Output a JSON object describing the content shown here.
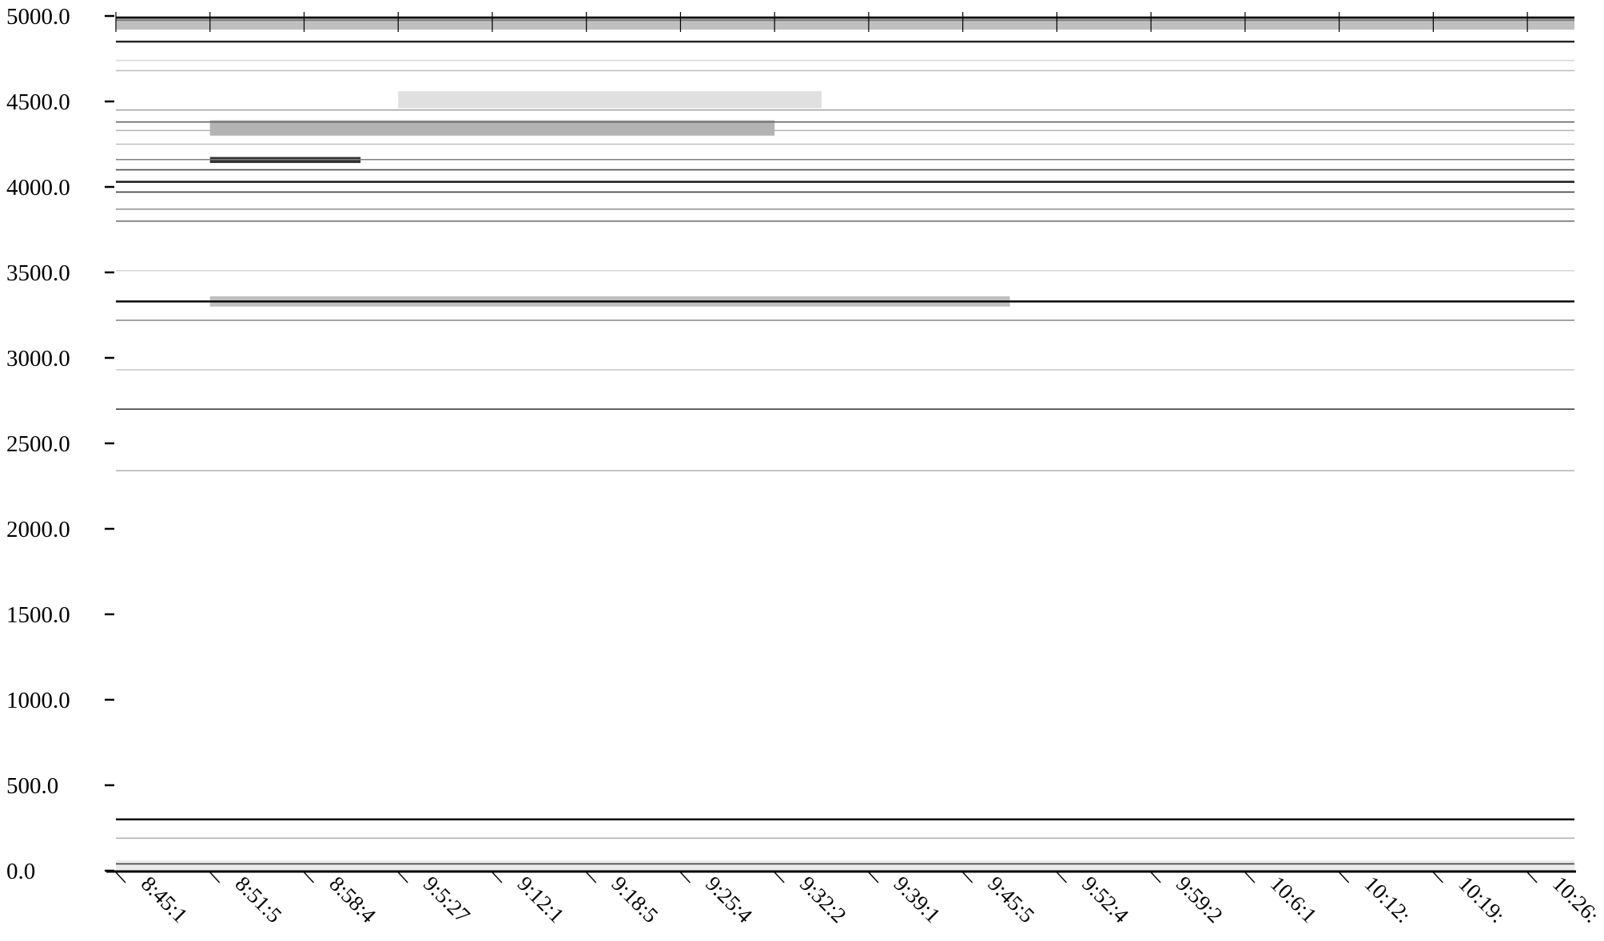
{
  "chart_data": {
    "type": "heatmap",
    "title": "",
    "xlabel": "",
    "ylabel": "",
    "colormap": "grayscale (white = low, black = high)",
    "ylim": [
      0,
      5000
    ],
    "y_ticks": [
      "0.0",
      "500.0",
      "1000.0",
      "1500.0",
      "2000.0",
      "2500.0",
      "3000.0",
      "3500.0",
      "4000.0",
      "4500.0",
      "5000.0"
    ],
    "x_ticks": [
      "8:45:1",
      "8:51:5",
      "8:58:4",
      "9:5:27",
      "9:12:1",
      "9:18:5",
      "9:25:4",
      "9:32:2",
      "9:39:1",
      "9:45:5",
      "9:52:4",
      "9:59:2",
      "10:6:1",
      "10:12:",
      "10:19:",
      "10:26:"
    ],
    "bands": [
      {
        "y": 4990,
        "intensity": 0.95
      },
      {
        "y": 4975,
        "intensity": 0.55
      },
      {
        "y": 4950,
        "intensity": 0.25
      },
      {
        "y": 4850,
        "intensity": 0.85
      },
      {
        "y": 4740,
        "intensity": 0.15
      },
      {
        "y": 4680,
        "intensity": 0.25
      },
      {
        "y": 4450,
        "intensity": 0.35
      },
      {
        "y": 4380,
        "intensity": 0.6
      },
      {
        "y": 4330,
        "intensity": 0.3
      },
      {
        "y": 4250,
        "intensity": 0.25
      },
      {
        "y": 4160,
        "intensity": 0.5
      },
      {
        "y": 4100,
        "intensity": 0.7
      },
      {
        "y": 4030,
        "intensity": 0.9
      },
      {
        "y": 3970,
        "intensity": 0.75
      },
      {
        "y": 3870,
        "intensity": 0.4
      },
      {
        "y": 3800,
        "intensity": 0.55
      },
      {
        "y": 3510,
        "intensity": 0.15
      },
      {
        "y": 3330,
        "intensity": 0.97
      },
      {
        "y": 3220,
        "intensity": 0.45
      },
      {
        "y": 2930,
        "intensity": 0.2
      },
      {
        "y": 2700,
        "intensity": 0.75
      },
      {
        "y": 2340,
        "intensity": 0.3
      },
      {
        "y": 300,
        "intensity": 0.95
      },
      {
        "y": 190,
        "intensity": 0.3
      },
      {
        "y": 40,
        "intensity": 0.75
      }
    ],
    "patches": [
      {
        "x": [
          1,
          2.6
        ],
        "y": [
          4140,
          4175
        ],
        "intensity": 0.8
      },
      {
        "x": [
          1,
          7
        ],
        "y": [
          4300,
          4390
        ],
        "intensity": 0.3
      },
      {
        "x": [
          3,
          7.5
        ],
        "y": [
          4460,
          4560
        ],
        "intensity": 0.12
      },
      {
        "x": [
          0,
          15.5
        ],
        "y": [
          4920,
          5000
        ],
        "intensity": 0.25
      },
      {
        "x": [
          1,
          9.5
        ],
        "y": [
          3300,
          3360
        ],
        "intensity": 0.25
      },
      {
        "x": [
          0,
          15.5
        ],
        "y": [
          0,
          60
        ],
        "intensity": 0.08
      }
    ]
  }
}
